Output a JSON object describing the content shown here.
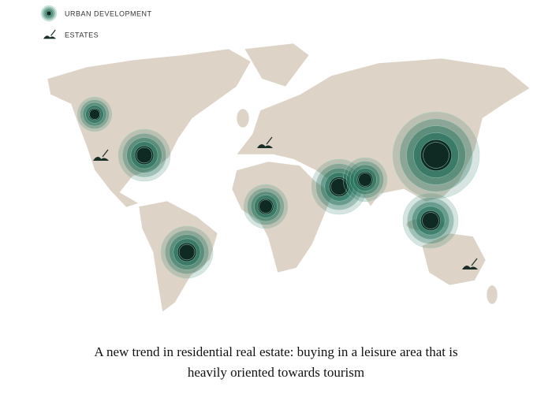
{
  "legend": [
    {
      "label": "URBAN DEVELOPMENT"
    },
    {
      "label": "ESTATES"
    }
  ],
  "caption": {
    "lines": [
      "A new trend in residential real estate: buying in a leisure area that is",
      "heavily oriented towards tourism"
    ]
  }
}
